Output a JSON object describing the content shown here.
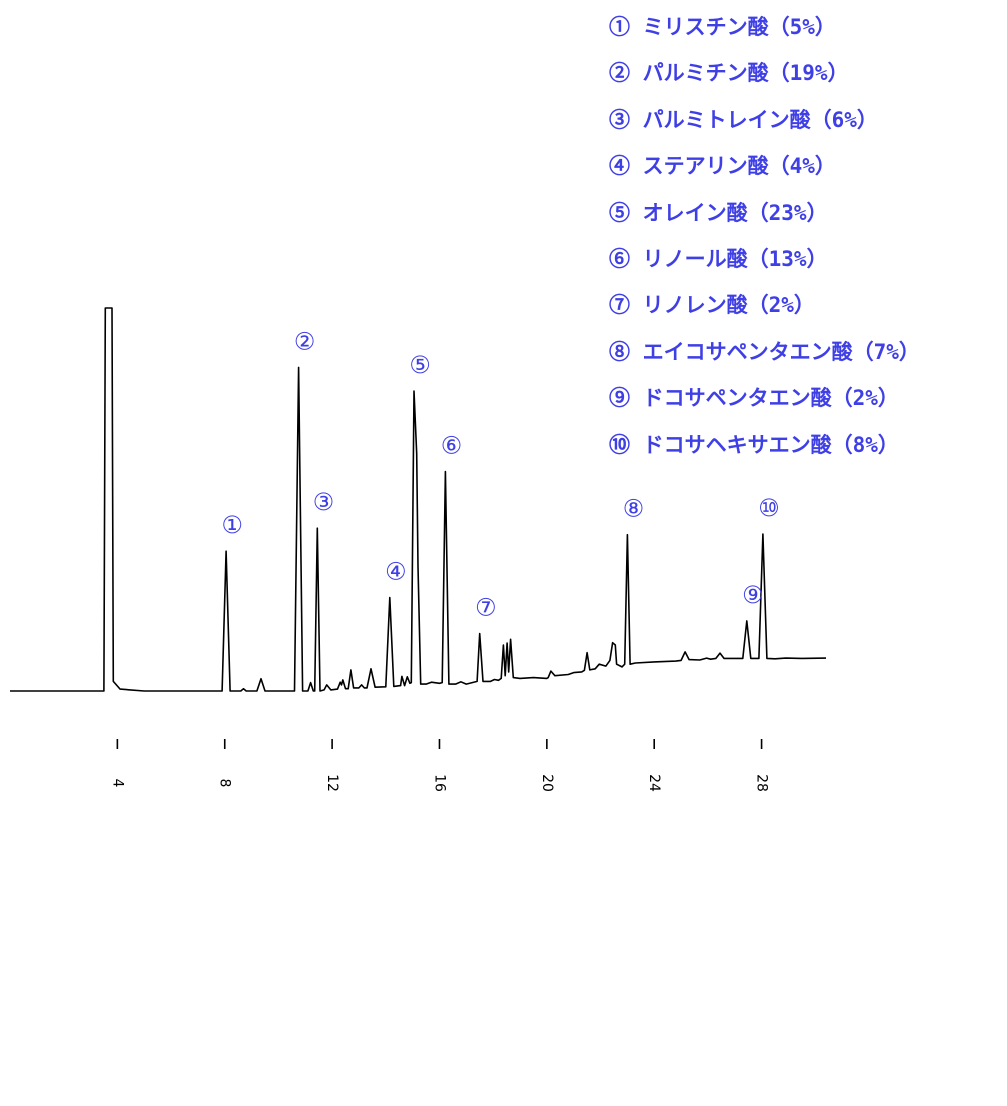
{
  "chart_data": {
    "type": "line",
    "x_ticks": [
      "4",
      "8",
      "12",
      "16",
      "20",
      "24",
      "28"
    ],
    "x_range": [
      0.0,
      30.4
    ],
    "y_range": [
      0,
      100
    ],
    "grid": false,
    "legend_position": "top-right",
    "series": [
      {
        "points": [
          [
            0.0,
            0.0
          ],
          [
            3.5,
            0.0
          ],
          [
            3.55,
            100
          ],
          [
            3.8,
            100
          ],
          [
            3.85,
            2.5
          ],
          [
            4.1,
            0.5
          ],
          [
            5.0,
            0.0
          ],
          [
            7.9,
            0.0
          ],
          [
            8.05,
            36.5
          ],
          [
            8.2,
            0.0
          ],
          [
            8.6,
            0.0
          ],
          [
            8.7,
            0.6
          ],
          [
            8.8,
            0.0
          ],
          [
            9.2,
            0.0
          ],
          [
            9.35,
            3.2
          ],
          [
            9.5,
            0.0
          ],
          [
            10.6,
            0.0
          ],
          [
            10.75,
            84.5
          ],
          [
            10.9,
            0.0
          ],
          [
            11.1,
            0.0
          ],
          [
            11.2,
            2.2
          ],
          [
            11.3,
            0.0
          ],
          [
            11.35,
            0.0
          ],
          [
            11.45,
            42.5
          ],
          [
            11.55,
            0.0
          ],
          [
            11.7,
            0.3
          ],
          [
            11.8,
            1.6
          ],
          [
            11.95,
            0.3
          ],
          [
            12.2,
            0.5
          ],
          [
            12.3,
            2.3
          ],
          [
            12.35,
            1.6
          ],
          [
            12.4,
            2.9
          ],
          [
            12.5,
            0.6
          ],
          [
            12.6,
            0.6
          ],
          [
            12.7,
            5.5
          ],
          [
            12.8,
            0.8
          ],
          [
            13.0,
            0.8
          ],
          [
            13.1,
            1.6
          ],
          [
            13.2,
            0.8
          ],
          [
            13.3,
            0.8
          ],
          [
            13.45,
            5.8
          ],
          [
            13.6,
            1.0
          ],
          [
            14.0,
            1.1
          ],
          [
            14.15,
            24.4
          ],
          [
            14.3,
            1.2
          ],
          [
            14.55,
            1.4
          ],
          [
            14.6,
            3.8
          ],
          [
            14.7,
            1.4
          ],
          [
            14.8,
            3.7
          ],
          [
            14.9,
            2.0
          ],
          [
            14.95,
            2.2
          ],
          [
            15.05,
            78.3
          ],
          [
            15.15,
            62.0
          ],
          [
            15.2,
            32.5
          ],
          [
            15.3,
            1.8
          ],
          [
            15.5,
            1.8
          ],
          [
            15.7,
            2.3
          ],
          [
            16.0,
            2.0
          ],
          [
            16.1,
            2.2
          ],
          [
            16.22,
            57.3
          ],
          [
            16.35,
            1.8
          ],
          [
            16.6,
            1.8
          ],
          [
            16.8,
            2.4
          ],
          [
            17.0,
            1.8
          ],
          [
            17.4,
            2.5
          ],
          [
            17.5,
            15.0
          ],
          [
            17.62,
            2.5
          ],
          [
            17.9,
            2.5
          ],
          [
            18.05,
            3.0
          ],
          [
            18.2,
            2.8
          ],
          [
            18.3,
            3.3
          ],
          [
            18.38,
            12.0
          ],
          [
            18.45,
            4.0
          ],
          [
            18.52,
            12.5
          ],
          [
            18.58,
            5.0
          ],
          [
            18.65,
            13.5
          ],
          [
            18.75,
            3.5
          ],
          [
            19.0,
            3.3
          ],
          [
            19.5,
            3.5
          ],
          [
            20.0,
            3.3
          ],
          [
            20.05,
            3.5
          ],
          [
            20.15,
            5.2
          ],
          [
            20.3,
            4.0
          ],
          [
            20.8,
            4.3
          ],
          [
            21.0,
            4.8
          ],
          [
            21.3,
            5.0
          ],
          [
            21.4,
            5.4
          ],
          [
            21.5,
            10.0
          ],
          [
            21.6,
            5.5
          ],
          [
            21.8,
            5.8
          ],
          [
            21.95,
            7.0
          ],
          [
            22.2,
            6.5
          ],
          [
            22.35,
            8.0
          ],
          [
            22.45,
            12.6
          ],
          [
            22.55,
            12.0
          ],
          [
            22.6,
            7.0
          ],
          [
            22.8,
            6.3
          ],
          [
            22.9,
            7.0
          ],
          [
            23.0,
            40.8
          ],
          [
            23.1,
            7.0
          ],
          [
            23.3,
            7.3
          ],
          [
            24.0,
            7.6
          ],
          [
            24.8,
            7.8
          ],
          [
            25.0,
            8.0
          ],
          [
            25.15,
            10.2
          ],
          [
            25.3,
            8.2
          ],
          [
            25.7,
            8.1
          ],
          [
            25.95,
            8.6
          ],
          [
            26.1,
            8.3
          ],
          [
            26.3,
            8.5
          ],
          [
            26.45,
            9.9
          ],
          [
            26.6,
            8.5
          ],
          [
            27.3,
            8.5
          ],
          [
            27.45,
            18.3
          ],
          [
            27.6,
            8.5
          ],
          [
            27.9,
            8.5
          ],
          [
            28.05,
            41.0
          ],
          [
            28.2,
            8.5
          ],
          [
            28.5,
            8.4
          ],
          [
            28.9,
            8.6
          ],
          [
            29.5,
            8.5
          ],
          [
            30.4,
            8.6
          ]
        ]
      }
    ],
    "peak_annotations": [
      {
        "label": "①",
        "x": 8.05,
        "value": 36.5
      },
      {
        "label": "②",
        "x": 10.75,
        "value": 84.5
      },
      {
        "label": "③",
        "x": 11.45,
        "value": 42.5
      },
      {
        "label": "④",
        "x": 14.15,
        "value": 24.4
      },
      {
        "label": "⑤",
        "x": 15.05,
        "value": 78.3
      },
      {
        "label": "⑥",
        "x": 16.22,
        "value": 57.3
      },
      {
        "label": "⑦",
        "x": 17.5,
        "value": 15.0
      },
      {
        "label": "⑧",
        "x": 23.0,
        "value": 40.8
      },
      {
        "label": "⑨",
        "x": 27.45,
        "value": 18.3
      },
      {
        "label": "⑩",
        "x": 28.05,
        "value": 41.0
      }
    ],
    "legend": [
      "① ミリスチン酸（5%）",
      "② パルミチン酸（19%）",
      "③ パルミトレイン酸（6%）",
      "④ ステアリン酸（4%）",
      "⑤ オレイン酸（23%）",
      "⑥ リノール酸（13%）",
      "⑦ リノレン酸（2%）",
      "⑧ エイコサペンタエン酸（7%）",
      "⑨ ドコサペンタエン酸（2%）",
      "⑩ ドコサヘキサエン酸（8%）"
    ]
  },
  "colors": {
    "trace": "#000000",
    "annotation": "#3f3fe6"
  }
}
